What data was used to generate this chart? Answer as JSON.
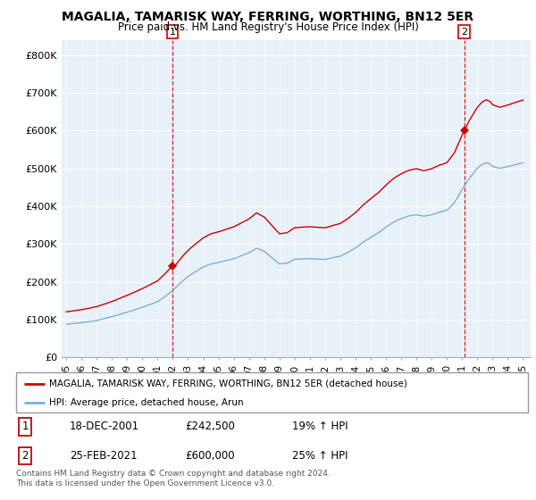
{
  "title": "MAGALIA, TAMARISK WAY, FERRING, WORTHING, BN12 5ER",
  "subtitle": "Price paid vs. HM Land Registry's House Price Index (HPI)",
  "ylabel_ticks": [
    "£0",
    "£100K",
    "£200K",
    "£300K",
    "£400K",
    "£500K",
    "£600K",
    "£700K",
    "£800K"
  ],
  "ytick_vals": [
    0,
    100000,
    200000,
    300000,
    400000,
    500000,
    600000,
    700000,
    800000
  ],
  "ylim": [
    0,
    840000
  ],
  "sale1_x": 2001.97,
  "sale1_y": 242500,
  "sale2_x": 2021.14,
  "sale2_y": 600000,
  "legend_line1": "MAGALIA, TAMARISK WAY, FERRING, WORTHING, BN12 5ER (detached house)",
  "legend_line2": "HPI: Average price, detached house, Arun",
  "footer": "Contains HM Land Registry data © Crown copyright and database right 2024.\nThis data is licensed under the Open Government Licence v3.0.",
  "table_rows": [
    [
      "1",
      "18-DEC-2001",
      "£242,500",
      "19% ↑ HPI"
    ],
    [
      "2",
      "25-FEB-2021",
      "£600,000",
      "25% ↑ HPI"
    ]
  ],
  "line_color_house": "#cc0000",
  "line_color_hpi": "#7bafd4",
  "plot_bg_color": "#e8f0f8",
  "x_start": 1995.0,
  "x_end": 2025.5,
  "xtick_labels": [
    "95",
    "96",
    "97",
    "98",
    "99",
    "00",
    "01",
    "02",
    "03",
    "04",
    "05",
    "06",
    "07",
    "08",
    "09",
    "10",
    "11",
    "12",
    "13",
    "14",
    "15",
    "16",
    "17",
    "18",
    "19",
    "20",
    "21",
    "22",
    "23",
    "24",
    "25"
  ],
  "xtick_positions": [
    1995,
    1996,
    1997,
    1998,
    1999,
    2000,
    2001,
    2002,
    2003,
    2004,
    2005,
    2006,
    2007,
    2008,
    2009,
    2010,
    2011,
    2012,
    2013,
    2014,
    2015,
    2016,
    2017,
    2018,
    2019,
    2020,
    2021,
    2022,
    2023,
    2024,
    2025
  ]
}
